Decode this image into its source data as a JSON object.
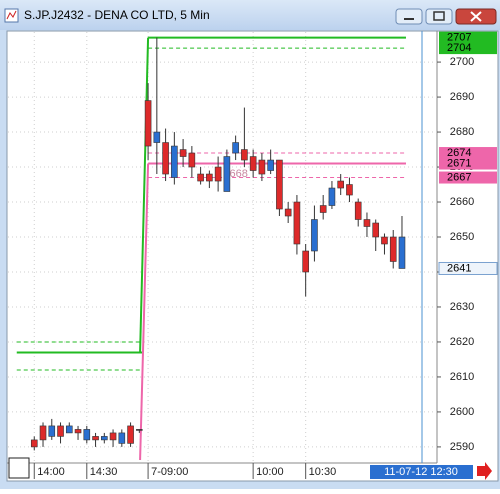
{
  "window": {
    "title": "S.JP.J2432 - DENA CO LTD, 5 Min"
  },
  "chart_data": {
    "type": "candlestick",
    "up_color": "#dd2a2a",
    "down_color": "#2a6fd0",
    "doji_color": "#333333",
    "ylim": [
      2585.4,
      2708.6
    ],
    "yticks": [
      2590,
      2600,
      2610,
      2620,
      2630,
      2640,
      2650,
      2660,
      2670,
      2680,
      2690,
      2700
    ],
    "grid": true,
    "xlim": [
      -3,
      46
    ],
    "xticks": [
      {
        "value": 0,
        "label": "14:00"
      },
      {
        "value": 6,
        "label": "14:30"
      },
      {
        "value": 13,
        "label": "7-09:00"
      },
      {
        "value": 25,
        "label": "10:00"
      },
      {
        "value": 31,
        "label": "10:30"
      }
    ],
    "current_time": "11-07-12 12:30",
    "current_price": 2641,
    "annotation": {
      "text": "2668",
      "x": 23,
      "y": 2668
    },
    "open": [
      2590,
      2592,
      2596,
      2593,
      2596,
      2594,
      2595,
      2592,
      2593,
      2592,
      2594,
      2591,
      2595,
      2676,
      2680,
      2668,
      2676,
      2673,
      2670,
      2666,
      2666,
      2666,
      2673,
      2677,
      2672,
      2669,
      2668,
      2672,
      2658,
      2656,
      2648,
      2640,
      2655,
      2657,
      2664,
      2664,
      2662,
      2655,
      2653,
      2650,
      2648,
      2643,
      2650
    ],
    "high": [
      2593,
      2597,
      2598,
      2597,
      2597,
      2596,
      2596,
      2594,
      2594,
      2595,
      2595,
      2597,
      2595,
      2694,
      2707,
      2681,
      2680,
      2678,
      2676,
      2670,
      2669,
      2673,
      2675,
      2679,
      2687,
      2675,
      2674,
      2675,
      2672,
      2660,
      2662,
      2648,
      2659,
      2662,
      2666,
      2668,
      2667,
      2661,
      2657,
      2655,
      2651,
      2652,
      2656
    ],
    "low": [
      2589,
      2590,
      2592,
      2591,
      2594,
      2592,
      2591,
      2590,
      2591,
      2590,
      2590,
      2590,
      2594,
      2672,
      2668,
      2666,
      2665,
      2670,
      2667,
      2665,
      2664,
      2663,
      2663,
      2672,
      2670,
      2667,
      2666,
      2668,
      2656,
      2654,
      2645,
      2633,
      2643,
      2655,
      2658,
      2662,
      2660,
      2653,
      2650,
      2646,
      2645,
      2641,
      2642
    ],
    "close": [
      2592,
      2596,
      2593,
      2596,
      2594,
      2595,
      2592,
      2593,
      2592,
      2594,
      2591,
      2596,
      2595,
      2689,
      2677,
      2677,
      2667,
      2675,
      2674,
      2668,
      2668,
      2670,
      2663,
      2674,
      2675,
      2673,
      2672,
      2669,
      2672,
      2658,
      2660,
      2646,
      2646,
      2659,
      2659,
      2666,
      2665,
      2660,
      2655,
      2654,
      2650,
      2650,
      2641
    ],
    "levels": [
      {
        "value": 2617,
        "color": "#22bb22",
        "style": "solid",
        "from": -2,
        "to": 12
      },
      {
        "value": 2620,
        "color": "#22bb22",
        "style": "dashed",
        "from": -2,
        "to": 12
      },
      {
        "value": 2612,
        "color": "#22bb22",
        "style": "dashed",
        "from": -2,
        "to": 12
      },
      {
        "value": 2707,
        "color": "#22bb22",
        "style": "solid",
        "from": 13,
        "to": 42,
        "labeled": true
      },
      {
        "value": 2704,
        "color": "#22bb22",
        "style": "dashed",
        "from": 13,
        "to": 42,
        "labeled": true
      },
      {
        "value": 2674,
        "color": "#ee66aa",
        "style": "dashed",
        "from": 13,
        "to": 42,
        "labeled": true
      },
      {
        "value": 2671,
        "color": "#ee66aa",
        "style": "solid",
        "from": 13,
        "to": 42,
        "labeled": true
      },
      {
        "value": 2667,
        "color": "#ee66aa",
        "style": "dashed",
        "from": 13,
        "to": 42,
        "labeled": true
      }
    ]
  }
}
